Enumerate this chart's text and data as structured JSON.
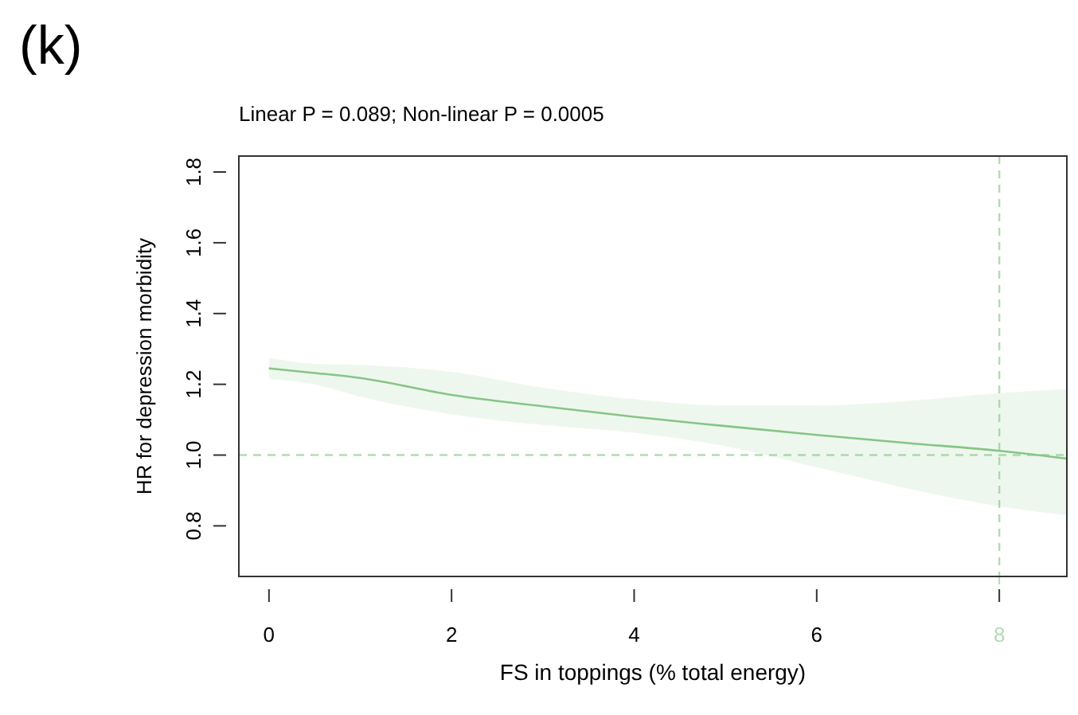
{
  "chart_data": {
    "type": "line",
    "title": "Linear P = 0.089; Non-linear P = 0.0005",
    "xlabel": "FS in toppings (% total energy)",
    "ylabel": "HR for depression morbidity",
    "annotations": [
      "(k)"
    ],
    "xlim": [
      -0.33,
      8.74
    ],
    "xticks": [
      0,
      2,
      4,
      6,
      8
    ],
    "ylim": [
      0.657,
      1.845
    ],
    "yticks": [
      {
        "value": 0.8,
        "label": "0.8"
      },
      {
        "value": 1,
        "label": "1.0"
      },
      {
        "value": 1.2,
        "label": "1.2"
      },
      {
        "value": 1.4,
        "label": "1.4"
      },
      {
        "value": 1.6,
        "label": "1.6"
      },
      {
        "value": 1.8,
        "label": "1.8"
      }
    ],
    "series": [
      {
        "color": "#86c586",
        "x": [
          0,
          0.5,
          1,
          2,
          3,
          4,
          5,
          6,
          7,
          8,
          8.74
        ],
        "values": [
          1.245,
          1.232,
          1.218,
          1.17,
          1.138,
          1.108,
          1.082,
          1.057,
          1.034,
          1.012,
          0.99
        ],
        "lower": [
          1.215,
          1.2,
          1.165,
          1.115,
          1.085,
          1.063,
          1.025,
          0.965,
          0.905,
          0.855,
          0.83
        ],
        "upper": [
          1.275,
          1.258,
          1.255,
          1.235,
          1.19,
          1.158,
          1.14,
          1.14,
          1.153,
          1.175,
          1.187
        ]
      }
    ],
    "ref_lines": [
      {
        "axis": "y",
        "value": 1.0,
        "color": "#b3dbb3",
        "line_style": "dashed"
      },
      {
        "axis": "x",
        "value": 8,
        "color": "#b3dbb3",
        "line_style": "dashed"
      }
    ],
    "grid": false
  }
}
